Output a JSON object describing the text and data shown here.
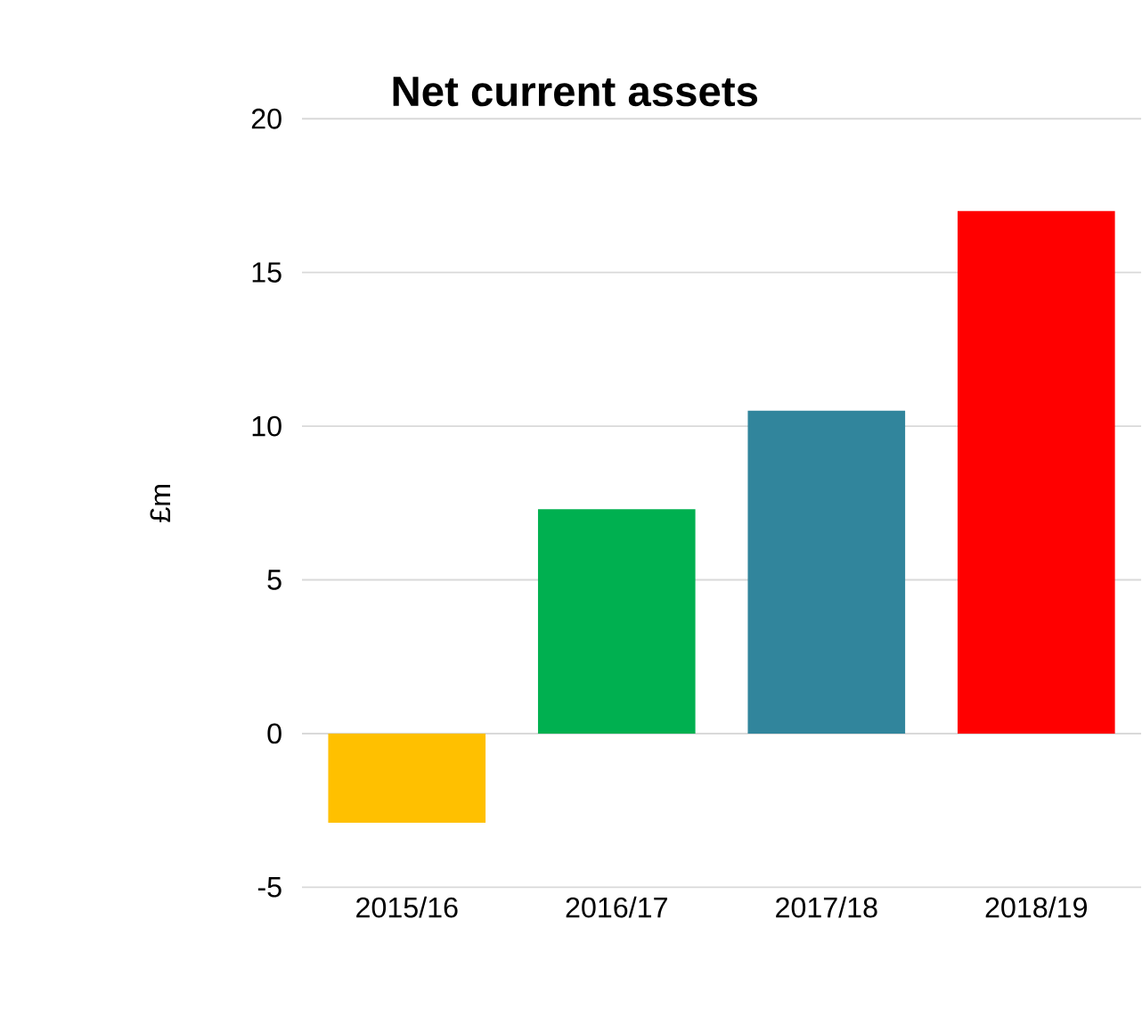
{
  "chart_data": {
    "type": "bar",
    "title": "Net current assets",
    "ylabel": "£m",
    "categories": [
      "2015/16",
      "2016/17",
      "2017/18",
      "2018/19"
    ],
    "values": [
      -2.9,
      7.3,
      10.5,
      17.0
    ],
    "colors": [
      "#ffc000",
      "#00b050",
      "#31859c",
      "#ff0000"
    ],
    "ylim": [
      -5,
      20
    ],
    "yticks": [
      -5,
      0,
      5,
      10,
      15,
      20
    ],
    "grid": "y"
  }
}
